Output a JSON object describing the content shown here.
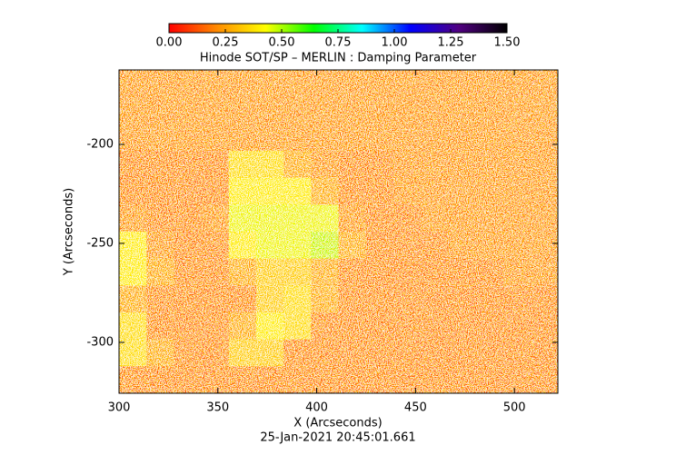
{
  "chart_data": {
    "type": "heatmap",
    "title": "Hinode SOT/SP – MERLIN : Damping Parameter",
    "xlabel": "X (Arcseconds)",
    "ylabel": "Y (Arcseconds)",
    "footer": "25-Jan-2021 20:45:01.661",
    "xlim": [
      300,
      522
    ],
    "ylim": [
      -325.7,
      -162.4
    ],
    "xticks": [
      300,
      350,
      400,
      450,
      500
    ],
    "yticks": [
      -200,
      -250,
      -300
    ],
    "clim": [
      0,
      1.5
    ],
    "cticks": [
      {
        "value": 0,
        "label": "0.00"
      },
      {
        "value": 0.25,
        "label": "0.25"
      },
      {
        "value": 0.5,
        "label": "0.50"
      },
      {
        "value": 0.75,
        "label": "0.75"
      },
      {
        "value": 1,
        "label": "1.00"
      },
      {
        "value": 1.25,
        "label": "1.25"
      },
      {
        "value": 1.5,
        "label": "1.50"
      }
    ],
    "colormap": [
      "#ff0000",
      "#ff8c00",
      "#ffff00",
      "#00ff00",
      "#00ffff",
      "#0000ff",
      "#500080",
      "#000000"
    ],
    "z": [
      [
        0.15,
        0.15,
        0.15,
        0.15,
        0.15,
        0.15,
        0.15,
        0.15,
        0.15,
        0.15,
        0.15,
        0.15,
        0.15,
        0.15,
        0.15,
        0.15
      ],
      [
        0.15,
        0.15,
        0.15,
        0.15,
        0.15,
        0.15,
        0.15,
        0.15,
        0.15,
        0.15,
        0.15,
        0.15,
        0.15,
        0.15,
        0.15,
        0.15
      ],
      [
        0.15,
        0.15,
        0.15,
        0.15,
        0.15,
        0.15,
        0.15,
        0.15,
        0.15,
        0.15,
        0.15,
        0.15,
        0.15,
        0.15,
        0.15,
        0.15
      ],
      [
        0.12,
        0.12,
        0.12,
        0.12,
        0.35,
        0.35,
        0.2,
        0.15,
        0.12,
        0.12,
        0.15,
        0.15,
        0.15,
        0.15,
        0.15,
        0.15
      ],
      [
        0.12,
        0.12,
        0.12,
        0.12,
        0.4,
        0.4,
        0.4,
        0.2,
        0.12,
        0.12,
        0.15,
        0.15,
        0.15,
        0.15,
        0.15,
        0.15
      ],
      [
        0.15,
        0.12,
        0.12,
        0.15,
        0.45,
        0.45,
        0.45,
        0.45,
        0.15,
        0.12,
        0.12,
        0.15,
        0.15,
        0.15,
        0.15,
        0.15
      ],
      [
        0.4,
        0.15,
        0.12,
        0.12,
        0.4,
        0.45,
        0.45,
        0.5,
        0.2,
        0.12,
        0.12,
        0.12,
        0.15,
        0.15,
        0.15,
        0.15
      ],
      [
        0.4,
        0.2,
        0.12,
        0.12,
        0.2,
        0.3,
        0.3,
        0.2,
        0.12,
        0.12,
        0.12,
        0.12,
        0.12,
        0.12,
        0.15,
        0.15
      ],
      [
        0.2,
        0.12,
        0.12,
        0.12,
        0.12,
        0.3,
        0.35,
        0.2,
        0.12,
        0.12,
        0.12,
        0.12,
        0.12,
        0.12,
        0.12,
        0.12
      ],
      [
        0.35,
        0.12,
        0.12,
        0.12,
        0.2,
        0.4,
        0.35,
        0.12,
        0.12,
        0.12,
        0.12,
        0.12,
        0.12,
        0.12,
        0.12,
        0.12
      ],
      [
        0.35,
        0.2,
        0.12,
        0.12,
        0.3,
        0.3,
        0.12,
        0.12,
        0.12,
        0.12,
        0.12,
        0.12,
        0.12,
        0.12,
        0.12,
        0.12
      ],
      [
        0.12,
        0.12,
        0.12,
        0.12,
        0.12,
        0.12,
        0.12,
        0.12,
        0.12,
        0.12,
        0.12,
        0.12,
        0.12,
        0.12,
        0.12,
        0.12
      ]
    ]
  }
}
